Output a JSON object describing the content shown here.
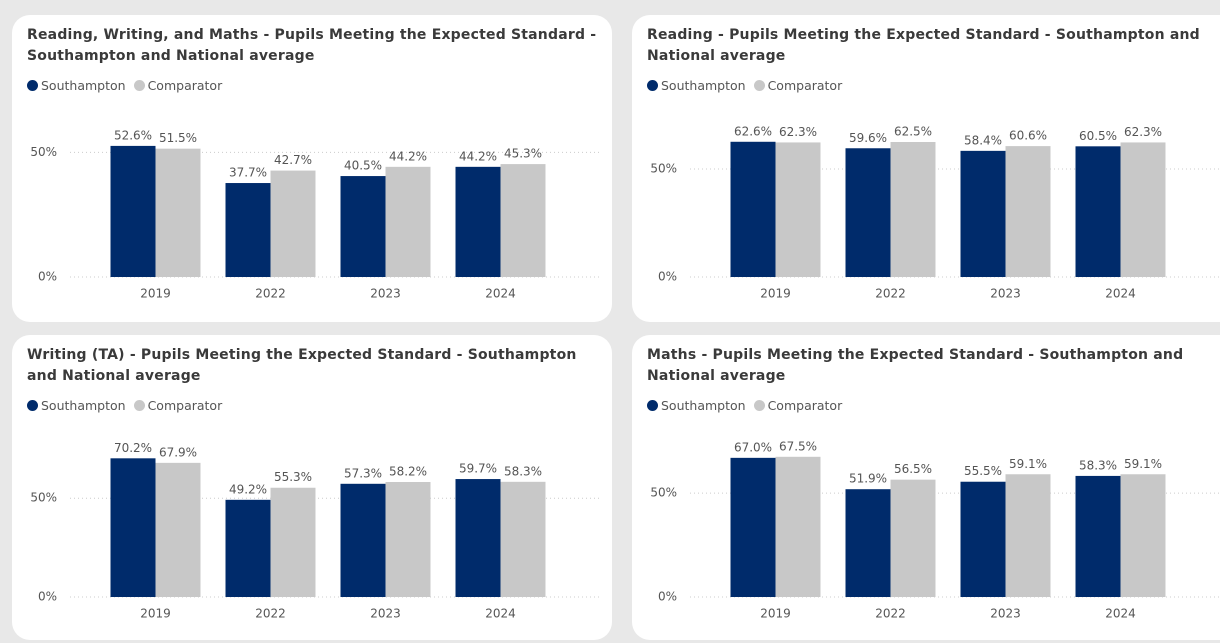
{
  "chart_data": [
    {
      "type": "bar",
      "title": "Reading, Writing, and Maths - Pupils Meeting the Expected Standard - Southampton and National average",
      "categories": [
        "2019",
        "2022",
        "2023",
        "2024"
      ],
      "series": [
        {
          "name": "Southampton",
          "color": "#002B6B",
          "values": [
            52.6,
            37.7,
            40.5,
            44.2
          ],
          "value_labels": [
            "52.6%",
            "37.7%",
            "40.5%",
            "44.2%"
          ]
        },
        {
          "name": "Comparator",
          "color": "#C8C8C8",
          "values": [
            51.5,
            42.7,
            44.2,
            45.3
          ],
          "value_labels": [
            "51.5%",
            "42.7%",
            "44.2%",
            "45.3%"
          ]
        }
      ],
      "ylim": [
        0,
        65
      ],
      "yticks": [
        {
          "value": 0,
          "label": "0%"
        },
        {
          "value": 50,
          "label": "50%"
        }
      ],
      "grid": true,
      "legend": "top-left"
    },
    {
      "type": "bar",
      "title": "Reading - Pupils Meeting the Expected Standard - Southampton and National average",
      "categories": [
        "2019",
        "2022",
        "2023",
        "2024"
      ],
      "series": [
        {
          "name": "Southampton",
          "color": "#002B6B",
          "values": [
            62.6,
            59.6,
            58.4,
            60.5
          ],
          "value_labels": [
            "62.6%",
            "59.6%",
            "58.4%",
            "60.5%"
          ]
        },
        {
          "name": "Comparator",
          "color": "#C8C8C8",
          "values": [
            62.3,
            62.5,
            60.6,
            62.3
          ],
          "value_labels": [
            "62.3%",
            "62.5%",
            "60.6%",
            "62.3%"
          ]
        }
      ],
      "ylim": [
        0,
        75
      ],
      "yticks": [
        {
          "value": 0,
          "label": "0%"
        },
        {
          "value": 50,
          "label": "50%"
        }
      ],
      "grid": true,
      "legend": "top-left"
    },
    {
      "type": "bar",
      "title": "Writing (TA) - Pupils Meeting the Expected Standard - Southampton and National average",
      "categories": [
        "2019",
        "2022",
        "2023",
        "2024"
      ],
      "series": [
        {
          "name": "Southampton",
          "color": "#002B6B",
          "values": [
            70.2,
            49.2,
            57.3,
            59.7
          ],
          "value_labels": [
            "70.2%",
            "49.2%",
            "57.3%",
            "59.7%"
          ]
        },
        {
          "name": "Comparator",
          "color": "#C8C8C8",
          "values": [
            67.9,
            55.3,
            58.2,
            58.3
          ],
          "value_labels": [
            "67.9%",
            "55.3%",
            "58.2%",
            "58.3%"
          ]
        }
      ],
      "ylim": [
        0,
        82
      ],
      "yticks": [
        {
          "value": 0,
          "label": "0%"
        },
        {
          "value": 50,
          "label": "50%"
        }
      ],
      "grid": true,
      "legend": "top-left"
    },
    {
      "type": "bar",
      "title": "Maths - Pupils Meeting the Expected Standard - Southampton and National average",
      "categories": [
        "2019",
        "2022",
        "2023",
        "2024"
      ],
      "series": [
        {
          "name": "Southampton",
          "color": "#002B6B",
          "values": [
            67.0,
            51.9,
            55.5,
            58.3
          ],
          "value_labels": [
            "67.0%",
            "51.9%",
            "55.5%",
            "58.3%"
          ]
        },
        {
          "name": "Comparator",
          "color": "#C8C8C8",
          "values": [
            67.5,
            56.5,
            59.1,
            59.1
          ],
          "value_labels": [
            "67.5%",
            "56.5%",
            "59.1%",
            "59.1%"
          ]
        }
      ],
      "ylim": [
        0,
        78
      ],
      "yticks": [
        {
          "value": 0,
          "label": "0%"
        },
        {
          "value": 50,
          "label": "50%"
        }
      ],
      "grid": true,
      "legend": "top-left"
    }
  ]
}
